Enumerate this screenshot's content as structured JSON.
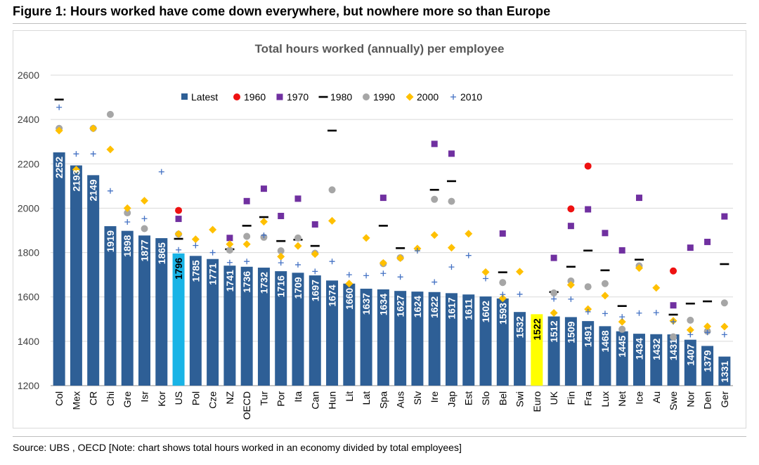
{
  "figure_title": "Figure 1: Hours worked have come down everywhere, but nowhere more so than Europe",
  "source_note": "Source: UBS , OECD [Note: chart shows total hours worked in an economy divided by total employees]",
  "colors": {
    "bar": "#2e5f96",
    "us_bar": "#19b4e6",
    "euro_bar": "#ffff00",
    "c1960": "#ee1111",
    "c1970": "#7030a0",
    "c1980": "#000000",
    "c1990": "#a6a6a6",
    "c2000": "#ffc000",
    "c2010": "#4472c4"
  },
  "chart_data": {
    "type": "bar",
    "title": "Total hours worked (annually) per employee",
    "ylim": [
      1200,
      2600
    ],
    "yticks": [
      1200,
      1400,
      1600,
      1800,
      2000,
      2200,
      2400,
      2600
    ],
    "grid": true,
    "legend": [
      "Latest",
      "1960",
      "1970",
      "1980",
      "1990",
      "2000",
      "2010"
    ],
    "legend_position": "top",
    "categories": [
      "Col",
      "Mex",
      "CR",
      "Chi",
      "Gre",
      "Isr",
      "Kor",
      "US",
      "Pol",
      "Cze",
      "NZ",
      "OECD",
      "Tur",
      "Por",
      "Ita",
      "Can",
      "Hun",
      "Lit",
      "Lat",
      "Spa",
      "Aus",
      "Slv",
      "Ire",
      "Jap",
      "Est",
      "Slo",
      "Bel",
      "Swi",
      "Euro",
      "UK",
      "Fin",
      "Fra",
      "Lux",
      "Net",
      "Ice",
      "Au",
      "Swe",
      "Nor",
      "Den",
      "Ger"
    ],
    "latest": [
      2252,
      2193,
      2149,
      1919,
      1898,
      1877,
      1865,
      1796,
      1785,
      1771,
      1741,
      1736,
      1732,
      1716,
      1709,
      1697,
      1674,
      1660,
      1637,
      1634,
      1627,
      1624,
      1622,
      1617,
      1611,
      1602,
      1593,
      1532,
      1522,
      1512,
      1509,
      1491,
      1468,
      1445,
      1434,
      1432,
      1431,
      1407,
      1379,
      1331
    ],
    "series": [
      {
        "name": "1960",
        "marker": "circle",
        "values": [
          null,
          null,
          null,
          null,
          null,
          null,
          null,
          1990,
          null,
          null,
          null,
          null,
          null,
          null,
          null,
          null,
          null,
          null,
          null,
          null,
          null,
          null,
          null,
          null,
          null,
          null,
          null,
          null,
          null,
          null,
          1997,
          2190,
          null,
          null,
          null,
          null,
          1717,
          null,
          null,
          null
        ]
      },
      {
        "name": "1970",
        "marker": "square",
        "values": [
          null,
          null,
          null,
          null,
          null,
          null,
          null,
          1952,
          null,
          null,
          1866,
          2032,
          2088,
          1965,
          2043,
          1927,
          null,
          null,
          null,
          2047,
          null,
          null,
          2290,
          2246,
          null,
          null,
          1886,
          null,
          null,
          1776,
          1920,
          1995,
          1888,
          1810,
          2047,
          null,
          1562,
          1822,
          1848,
          1963
        ]
      },
      {
        "name": "1980",
        "marker": "dash",
        "values": [
          2490,
          null,
          null,
          null,
          null,
          null,
          null,
          1862,
          null,
          null,
          1815,
          1921,
          1960,
          1852,
          1858,
          1830,
          2350,
          null,
          null,
          1921,
          1820,
          null,
          2083,
          2122,
          null,
          null,
          1711,
          null,
          null,
          1622,
          1736,
          1809,
          1720,
          1559,
          1768,
          null,
          1520,
          1570,
          1580,
          1748
        ]
      },
      {
        "name": "1990",
        "marker": "circle",
        "values": [
          2360,
          null,
          2360,
          2423,
          1979,
          1908,
          null,
          1883,
          null,
          null,
          1811,
          1873,
          1869,
          1808,
          1866,
          1797,
          2083,
          null,
          null,
          1750,
          1777,
          null,
          2040,
          2031,
          null,
          null,
          1665,
          null,
          null,
          1618,
          1672,
          1646,
          1660,
          1454,
          1740,
          null,
          1420,
          1495,
          1445,
          1573
        ]
      },
      {
        "name": "2000",
        "marker": "diamond",
        "values": [
          2350,
          2174,
          2360,
          2265,
          2000,
          2034,
          null,
          1884,
          1860,
          1903,
          1838,
          1838,
          1939,
          1782,
          1830,
          1793,
          1943,
          1660,
          1866,
          1753,
          1775,
          1818,
          1879,
          1822,
          1885,
          1712,
          1594,
          1714,
          null,
          1528,
          1654,
          1545,
          1606,
          1488,
          1730,
          1641,
          1492,
          1451,
          1467,
          1466
        ]
      },
      {
        "name": "2010",
        "marker": "plus",
        "values": [
          2455,
          2245,
          2245,
          2078,
          1938,
          1953,
          2164,
          1812,
          1832,
          1800,
          1755,
          1760,
          1878,
          1754,
          1745,
          1715,
          1760,
          1700,
          1696,
          1706,
          1690,
          1808,
          1667,
          1735,
          1787,
          1683,
          1611,
          1612,
          null,
          1591,
          1590,
          1533,
          1525,
          1510,
          1527,
          1529,
          1488,
          1430,
          1440,
          1430
        ]
      }
    ]
  }
}
